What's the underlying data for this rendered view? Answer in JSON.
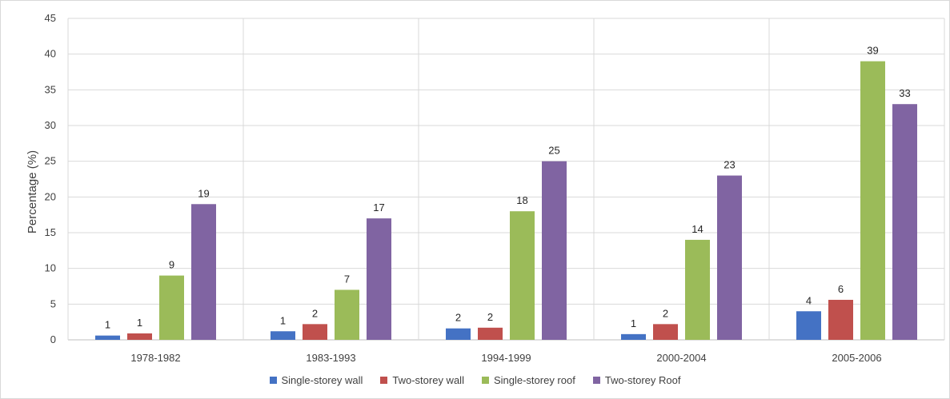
{
  "chart_data": {
    "type": "bar",
    "title": "",
    "xlabel": "",
    "ylabel": "Percentage (%)",
    "ylim": [
      0,
      45
    ],
    "yticks": [
      "0",
      "5",
      "10",
      "15",
      "20",
      "25",
      "30",
      "35",
      "40",
      "45"
    ],
    "categories": [
      "1978-1982",
      "1983-1993",
      "1994-1999",
      "2000-2004",
      "2005-2006"
    ],
    "grid": true,
    "legend_position": "bottom",
    "series": [
      {
        "name": "Single-storey wall",
        "color": "#4472C4",
        "values": [
          0.6,
          1.2,
          1.6,
          0.8,
          4.0
        ],
        "labels": [
          "1",
          "1",
          "2",
          "1",
          "4"
        ]
      },
      {
        "name": "Two-storey wall",
        "color": "#C0504D",
        "values": [
          0.9,
          2.2,
          1.7,
          2.2,
          5.6
        ],
        "labels": [
          "1",
          "2",
          "2",
          "2",
          "6"
        ]
      },
      {
        "name": "Single-storey roof",
        "color": "#9BBB59",
        "values": [
          9,
          7,
          18,
          14,
          39
        ],
        "labels": [
          "9",
          "7",
          "18",
          "14",
          "39"
        ]
      },
      {
        "name": "Two-storey Roof",
        "color": "#8064A2",
        "values": [
          19,
          17,
          25,
          23,
          33
        ],
        "labels": [
          "19",
          "17",
          "25",
          "23",
          "33"
        ]
      }
    ]
  }
}
